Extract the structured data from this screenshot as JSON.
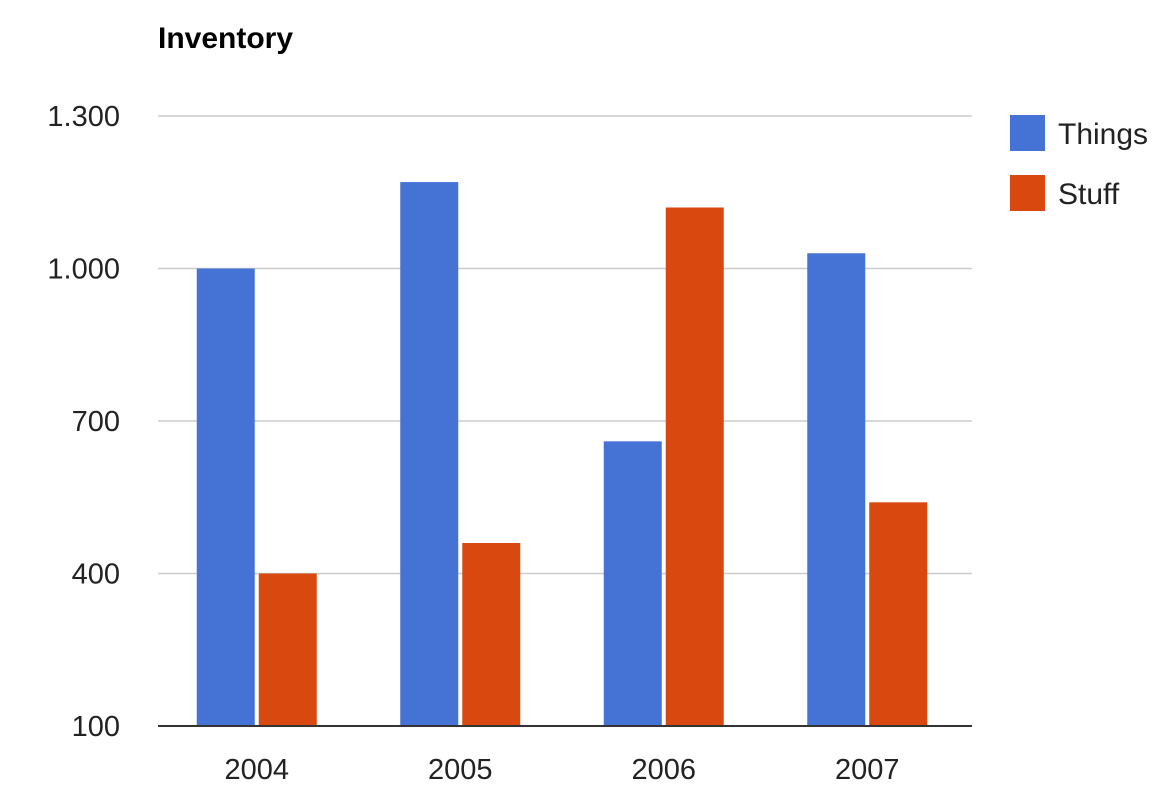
{
  "chart_data": {
    "type": "bar",
    "title": "Inventory",
    "xlabel": "",
    "ylabel": "",
    "categories": [
      "2004",
      "2005",
      "2006",
      "2007"
    ],
    "series": [
      {
        "name": "Things",
        "color": "#4573d5",
        "values": [
          1000,
          1170,
          660,
          1030
        ]
      },
      {
        "name": "Stuff",
        "color": "#d9480f",
        "values": [
          400,
          460,
          1120,
          540
        ]
      }
    ],
    "ylim": [
      100,
      1300
    ],
    "y_ticks": [
      100,
      400,
      700,
      1000,
      1300
    ],
    "y_tick_labels": [
      "100",
      "400",
      "700",
      "1.000",
      "1.300"
    ],
    "grid": true,
    "gridline_color": "#cccccc",
    "baseline_color": "#333333",
    "legend_position": "right"
  }
}
